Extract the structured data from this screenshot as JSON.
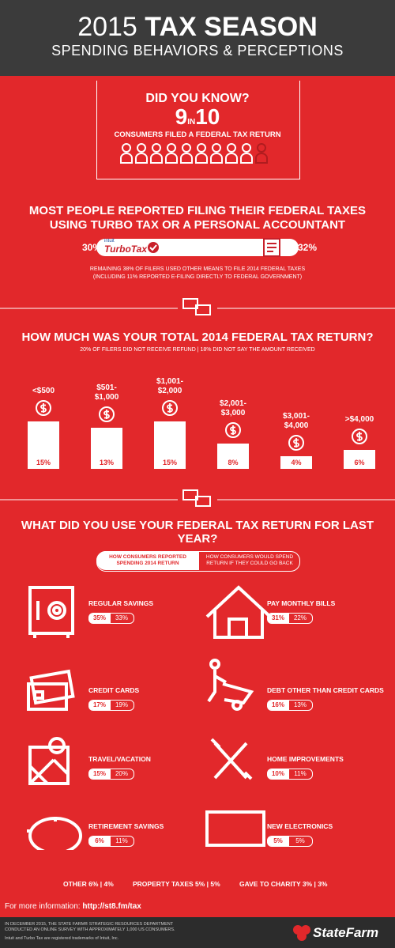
{
  "header": {
    "year": "2015",
    "title": "TAX SEASON",
    "subtitle": "SPENDING BEHAVIORS & PERCEPTIONS"
  },
  "did_you_know": {
    "heading": "DID YOU KNOW?",
    "big_left": "9",
    "small": "IN",
    "big_right": "10",
    "caption": "CONSUMERS FILED A FEDERAL TAX RETURN"
  },
  "filing": {
    "title_line1": "MOST PEOPLE REPORTED FILING THEIR FEDERAL TAXES",
    "title_line2": "USING TURBO TAX OR A PERSONAL ACCOUNTANT",
    "left_value": "30%",
    "intuit": "intuit",
    "brand": "TurboTax",
    "right_value": "32%",
    "note_line1": "REMAINING 38% OF FILERS USED OTHER MEANS TO FILE 2014 FEDERAL TAXES",
    "note_line2": "(INCLUDING 11% REPORTED E-FILING DIRECTLY TO FEDERAL GOVERNMENT)"
  },
  "chart_data": {
    "type": "bar",
    "title": "HOW MUCH WAS YOUR TOTAL 2014 FEDERAL TAX RETURN?",
    "subtitle": "20% OF FILERS DID NOT RECEIVE REFUND | 18% DID NOT SAY THE AMOUNT RECEIVED",
    "categories": [
      "<$500",
      "$501- $1,000",
      "$1,001- $2,000",
      "$2,001- $3,000",
      "$3,001- $4,000",
      ">$4,000"
    ],
    "values": [
      15,
      13,
      15,
      8,
      4,
      6
    ],
    "value_labels": [
      "15%",
      "13%",
      "15%",
      "8%",
      "4%",
      "6%"
    ],
    "color": "#ffffff"
  },
  "uses": {
    "title": "WHAT DID YOU USE YOUR FEDERAL TAX RETURN FOR LAST YEAR?",
    "toggle_left": "HOW CONSUMERS REPORTED SPENDING 2014 RETURN",
    "toggle_right": "HOW CONSUMERS WOULD SPEND RETURN IF THEY COULD GO BACK",
    "items": [
      {
        "name": "REGULAR SAVINGS",
        "reported": "35%",
        "would": "33%"
      },
      {
        "name": "PAY MONTHLY BILLS",
        "reported": "31%",
        "would": "22%"
      },
      {
        "name": "CREDIT CARDS",
        "reported": "17%",
        "would": "19%"
      },
      {
        "name": "DEBT OTHER THAN CREDIT CARDS",
        "reported": "16%",
        "would": "13%"
      },
      {
        "name": "TRAVEL/VACATION",
        "reported": "15%",
        "would": "20%"
      },
      {
        "name": "HOME IMPROVEMENTS",
        "reported": "10%",
        "would": "11%"
      },
      {
        "name": "RETIREMENT SAVINGS",
        "reported": "6%",
        "would": "11%"
      },
      {
        "name": "NEW ELECTRONICS",
        "reported": "5%",
        "would": "5%"
      }
    ],
    "others": [
      "OTHER 6% | 4%",
      "PROPERTY TAXES 5% | 5%",
      "GAVE TO CHARITY 3% | 3%"
    ]
  },
  "footer": {
    "more_info": "For more information:",
    "link": "http://st8.fm/tax",
    "note_line1": "IN DECEMBER 2015, THE STATE FARM® STRATEGIC RESOURCES DEPARTMENT",
    "note_line2": "CONDUCTED AN ONLINE SURVEY WITH APPROXIMATELY 1,000 US CONSUMERS.",
    "trademark": "Intuit and Turbo Tax are registered trademarks of Intuit, Inc.",
    "brand": "StateFarm"
  }
}
